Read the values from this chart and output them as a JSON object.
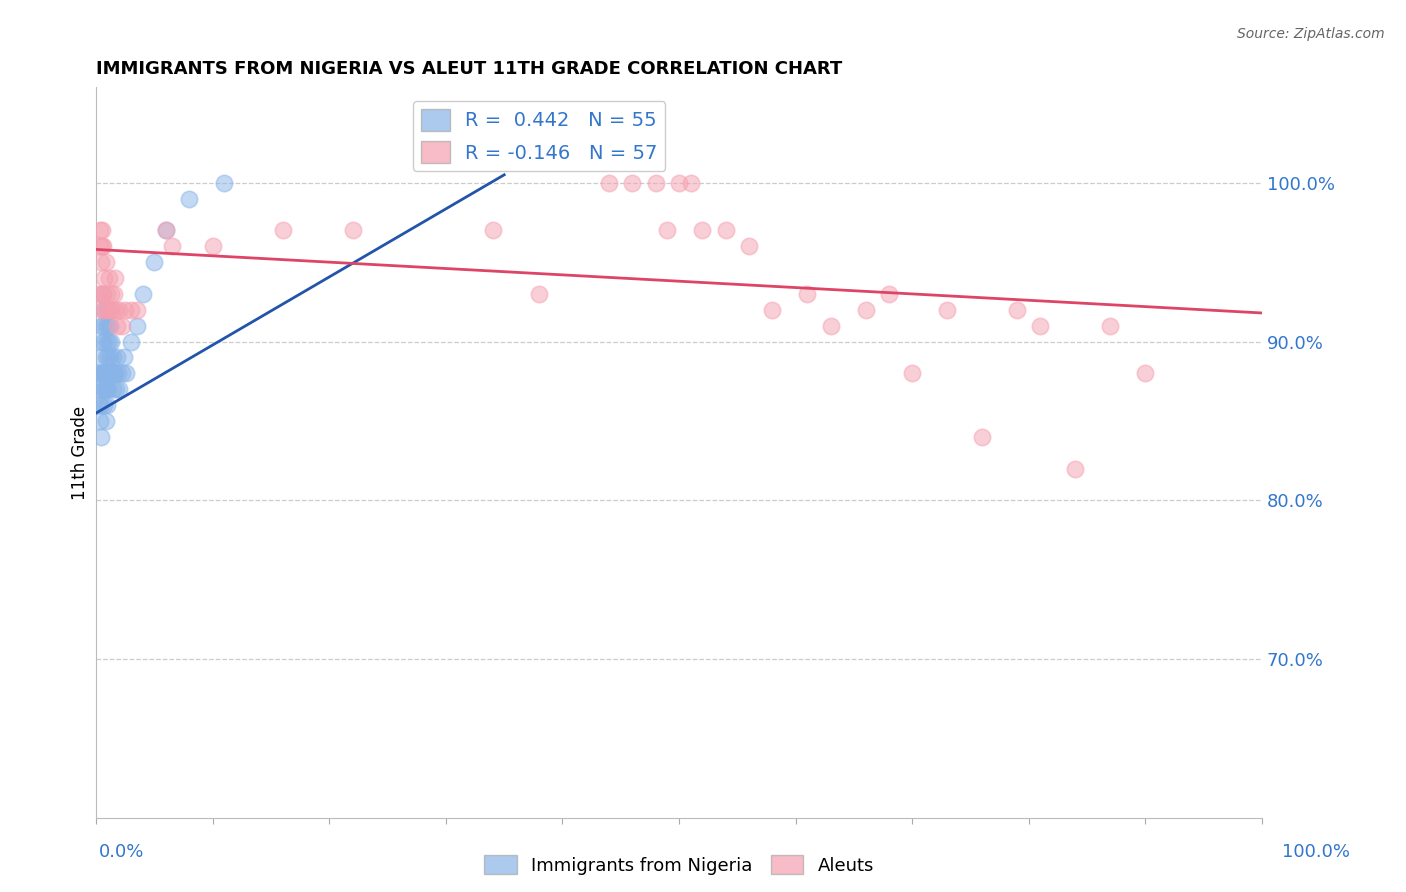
{
  "title": "IMMIGRANTS FROM NIGERIA VS ALEUT 11TH GRADE CORRELATION CHART",
  "source_text": "Source: ZipAtlas.com",
  "ylabel": "11th Grade",
  "ylabel_right_ticks": [
    "70.0%",
    "80.0%",
    "90.0%",
    "100.0%"
  ],
  "ylabel_right_values": [
    0.7,
    0.8,
    0.9,
    1.0
  ],
  "legend_r1": "R =  0.442",
  "legend_n1": "N = 55",
  "legend_r2": "R = -0.146",
  "legend_n2": "N = 57",
  "blue_color": "#89b4e8",
  "pink_color": "#f5a0b0",
  "blue_line_color": "#2255aa",
  "pink_line_color": "#dd4466",
  "nigeria_x": [
    0.001,
    0.002,
    0.003,
    0.003,
    0.003,
    0.004,
    0.004,
    0.004,
    0.004,
    0.005,
    0.005,
    0.006,
    0.006,
    0.006,
    0.006,
    0.007,
    0.007,
    0.007,
    0.007,
    0.007,
    0.008,
    0.008,
    0.008,
    0.008,
    0.009,
    0.009,
    0.009,
    0.009,
    0.01,
    0.01,
    0.01,
    0.011,
    0.011,
    0.012,
    0.012,
    0.013,
    0.013,
    0.014,
    0.014,
    0.015,
    0.016,
    0.017,
    0.018,
    0.019,
    0.02,
    0.022,
    0.024,
    0.026,
    0.03,
    0.035,
    0.04,
    0.05,
    0.06,
    0.08,
    0.11
  ],
  "nigeria_y": [
    0.88,
    0.86,
    0.87,
    0.89,
    0.85,
    0.91,
    0.88,
    0.86,
    0.84,
    0.9,
    0.88,
    0.93,
    0.91,
    0.88,
    0.87,
    0.92,
    0.9,
    0.88,
    0.87,
    0.86,
    0.91,
    0.89,
    0.87,
    0.85,
    0.92,
    0.9,
    0.88,
    0.86,
    0.91,
    0.89,
    0.87,
    0.9,
    0.88,
    0.91,
    0.89,
    0.9,
    0.88,
    0.89,
    0.87,
    0.88,
    0.88,
    0.87,
    0.89,
    0.88,
    0.87,
    0.88,
    0.89,
    0.88,
    0.9,
    0.91,
    0.93,
    0.95,
    0.97,
    0.99,
    1.0
  ],
  "aleut_x": [
    0.002,
    0.003,
    0.003,
    0.004,
    0.004,
    0.005,
    0.005,
    0.005,
    0.006,
    0.006,
    0.007,
    0.007,
    0.008,
    0.009,
    0.01,
    0.011,
    0.012,
    0.013,
    0.014,
    0.015,
    0.016,
    0.017,
    0.018,
    0.02,
    0.022,
    0.025,
    0.03,
    0.035,
    0.06,
    0.065,
    0.1,
    0.16,
    0.22,
    0.34,
    0.38,
    0.44,
    0.46,
    0.48,
    0.49,
    0.5,
    0.51,
    0.52,
    0.54,
    0.56,
    0.58,
    0.61,
    0.63,
    0.66,
    0.68,
    0.7,
    0.73,
    0.76,
    0.79,
    0.81,
    0.84,
    0.87,
    0.9
  ],
  "aleut_y": [
    0.93,
    0.96,
    0.97,
    0.93,
    0.95,
    0.92,
    0.96,
    0.97,
    0.93,
    0.96,
    0.94,
    0.92,
    0.95,
    0.93,
    0.92,
    0.94,
    0.92,
    0.93,
    0.92,
    0.93,
    0.94,
    0.92,
    0.91,
    0.92,
    0.91,
    0.92,
    0.92,
    0.92,
    0.97,
    0.96,
    0.96,
    0.97,
    0.97,
    0.97,
    0.93,
    1.0,
    1.0,
    1.0,
    0.97,
    1.0,
    1.0,
    0.97,
    0.97,
    0.96,
    0.92,
    0.93,
    0.91,
    0.92,
    0.93,
    0.88,
    0.92,
    0.84,
    0.92,
    0.91,
    0.82,
    0.91,
    0.88
  ],
  "xmin": 0.0,
  "xmax": 1.0,
  "ymin": 0.6,
  "ymax": 1.06,
  "blue_line_x": [
    0.0,
    0.35
  ],
  "blue_line_y": [
    0.855,
    1.005
  ],
  "pink_line_x": [
    0.0,
    1.0
  ],
  "pink_line_y": [
    0.958,
    0.918
  ]
}
